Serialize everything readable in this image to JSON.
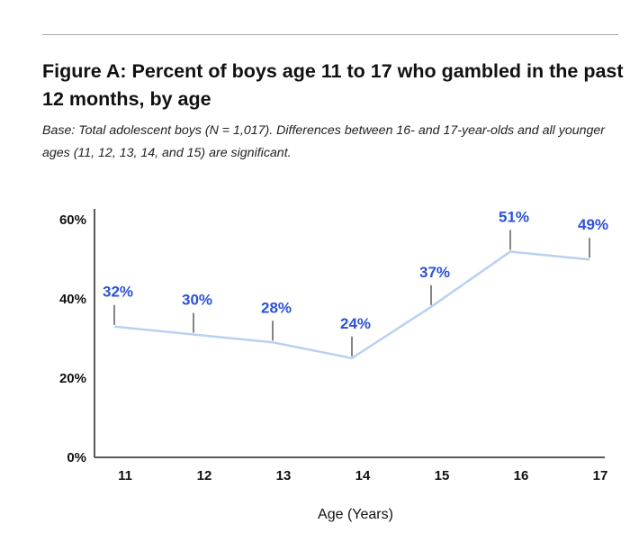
{
  "header": {
    "title": "Figure A: Percent of boys age 11 to 17 who gambled in the past 12 months, by age",
    "subtitle": "Base: Total adolescent boys (N = 1,017). Differences between 16- and 17-year-olds and all younger ages (11, 12, 13, 14, and 15) are significant."
  },
  "chart_data": {
    "type": "line",
    "title": "Figure A: Percent of boys age 11 to 17 who gambled in the past 12 months, by age",
    "subtitle": "Base: Total adolescent boys (N = 1,017). Differences between 16- and 17-year-olds and all younger ages (11, 12, 13, 14, and 15) are significant.",
    "xlabel": "Age (Years)",
    "ylabel": "",
    "x": [
      11,
      12,
      13,
      14,
      15,
      16,
      17
    ],
    "x_tick_labels": [
      "11",
      "12",
      "13",
      "14",
      "15",
      "16",
      "17"
    ],
    "y_ticks": [
      0,
      20,
      40,
      60
    ],
    "y_tick_labels": [
      "0%",
      "20%",
      "40%",
      "60%"
    ],
    "ylim": [
      0,
      60
    ],
    "series": [
      {
        "values": [
          32,
          30,
          28,
          24,
          37,
          51,
          49
        ],
        "data_labels": [
          "32%",
          "30%",
          "28%",
          "24%",
          "37%",
          "51%",
          "49%"
        ]
      }
    ],
    "grid": false,
    "legend": "none",
    "colors": {
      "line": "#b9d1f1",
      "data_label": "#2a52d6",
      "axis": "#222222",
      "rule": "#a7a7a7"
    }
  }
}
